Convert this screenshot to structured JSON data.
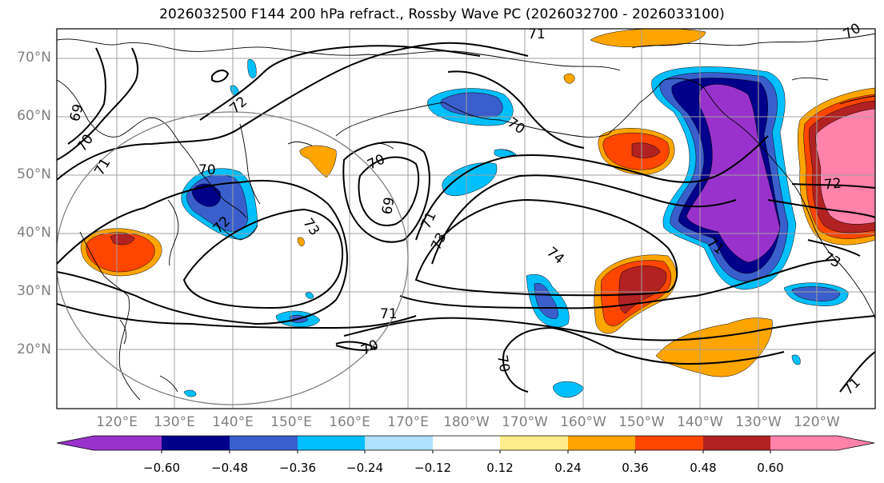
{
  "title": "2026032500 F144 200 hPa refract., Rossby Wave PC (2026032700 - 2026033100)",
  "latitude_labels": [
    "70°N",
    "60°N",
    "50°N",
    "40°N",
    "30°N",
    "20°N"
  ],
  "longitude_labels": [
    "120°E",
    "130°E",
    "140°E",
    "150°E",
    "160°E",
    "170°E",
    "180°W",
    "170°W",
    "160°W",
    "150°W",
    "140°W",
    "130°W",
    "120°W"
  ],
  "contour_labels": [
    "69",
    "70",
    "71",
    "72",
    "70",
    "72",
    "73",
    "70",
    "69",
    "71",
    "73",
    "70",
    "74",
    "71",
    "70",
    "71",
    "73",
    "72",
    "71",
    "70",
    "70",
    "71"
  ],
  "colorbar": {
    "colors": [
      "#9932cc",
      "#00008b",
      "#3a5fcd",
      "#00bfff",
      "#b0e2ff",
      "#ffffff",
      "#ffec8b",
      "#ffa500",
      "#ff4500",
      "#b22222",
      "#ff82ab"
    ],
    "ticks": [
      "−0.60",
      "−0.48",
      "−0.36",
      "−0.24",
      "−0.12",
      "0.12",
      "0.24",
      "0.36",
      "0.48",
      "0.60"
    ]
  },
  "colors": {
    "grid": "#a0a0a0",
    "contour": "#000000",
    "circle": "#808080",
    "tick_label": "#808080"
  }
}
